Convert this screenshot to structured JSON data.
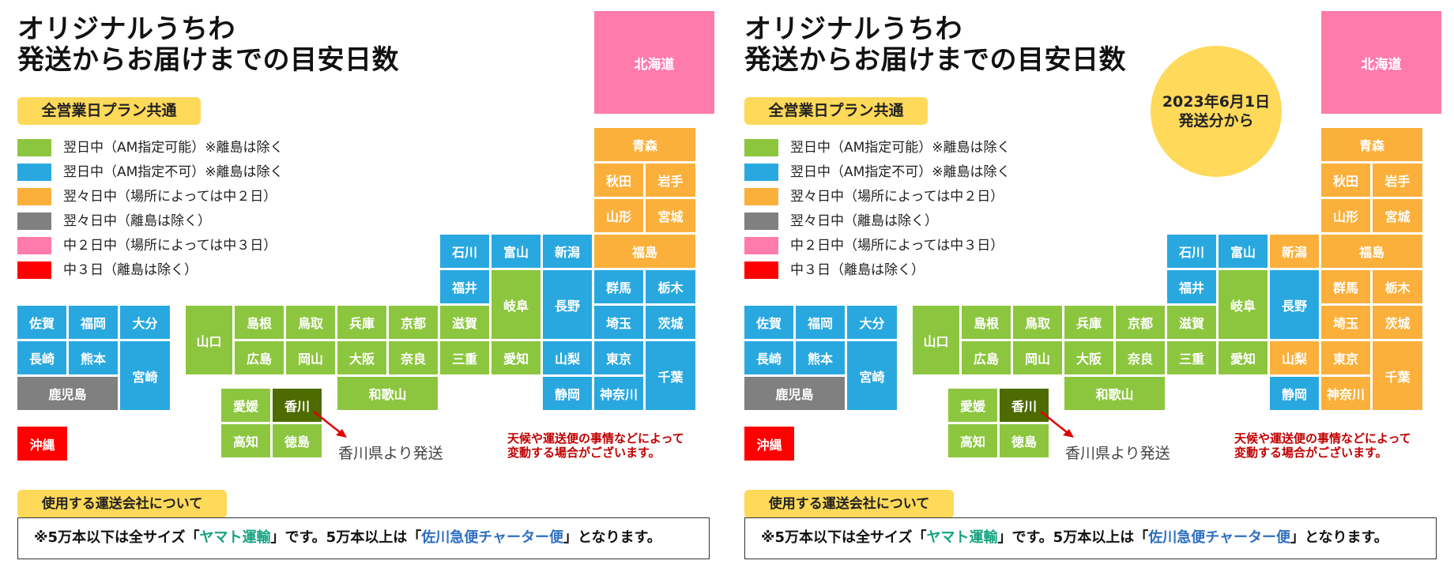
{
  "colors": {
    "green": "#8cc63f",
    "blue": "#29a8e0",
    "orange": "#fbb03b",
    "gray": "#808080",
    "pink": "#ff7bac",
    "red": "#ff0000",
    "dark_green": "#4d6b00",
    "badge_yellow": "#ffd95a"
  },
  "title": {
    "line1": "オリジナルうちわ",
    "line2": "発送からお届けまでの目安日数"
  },
  "plan_tag": "全営業日プラン共通",
  "legend": [
    {
      "color": "green",
      "label": "翌日中（AM指定可能）※離島は除く"
    },
    {
      "color": "blue",
      "label": "翌日中（AM指定不可）※離島は除く"
    },
    {
      "color": "orange",
      "label": "翌々日中（場所によっては中２日）"
    },
    {
      "color": "gray",
      "label": "翌々日中（離島は除く）"
    },
    {
      "color": "pink",
      "label": "中２日中（場所によっては中３日）"
    },
    {
      "color": "red",
      "label": "中３日（離島は除く）"
    }
  ],
  "ship_from": "香川県より発送",
  "caution": {
    "line1": "天候や運送便の事情などによって",
    "line2": "変動する場合がございます。"
  },
  "carrier_tag": "使用する運送会社について",
  "carrier": {
    "prefix": "※5万本以下は全サイズ「",
    "yamato": "ヤマト運輸",
    "middle": "」です。5万本以上は「",
    "sagawa": "佐川急便チャーター便",
    "suffix": "」となります。"
  },
  "new_badge": {
    "line1": "2023年6月1日",
    "line2": "発送分から"
  },
  "map_before": [
    {
      "name": "北海道",
      "color": "pink"
    },
    {
      "name": "青森",
      "color": "orange"
    },
    {
      "name": "秋田",
      "color": "orange"
    },
    {
      "name": "岩手",
      "color": "orange"
    },
    {
      "name": "山形",
      "color": "orange"
    },
    {
      "name": "宮城",
      "color": "orange"
    },
    {
      "name": "福島",
      "color": "orange"
    },
    {
      "name": "石川",
      "color": "blue"
    },
    {
      "name": "富山",
      "color": "blue"
    },
    {
      "name": "新潟",
      "color": "blue"
    },
    {
      "name": "福井",
      "color": "blue"
    },
    {
      "name": "岐阜",
      "color": "green"
    },
    {
      "name": "長野",
      "color": "blue"
    },
    {
      "name": "群馬",
      "color": "blue"
    },
    {
      "name": "栃木",
      "color": "blue"
    },
    {
      "name": "埼玉",
      "color": "blue"
    },
    {
      "name": "茨城",
      "color": "blue"
    },
    {
      "name": "山梨",
      "color": "blue"
    },
    {
      "name": "東京",
      "color": "blue"
    },
    {
      "name": "千葉",
      "color": "blue"
    },
    {
      "name": "静岡",
      "color": "blue"
    },
    {
      "name": "神奈川",
      "color": "blue"
    },
    {
      "name": "滋賀",
      "color": "green"
    },
    {
      "name": "三重",
      "color": "green"
    },
    {
      "name": "愛知",
      "color": "green"
    },
    {
      "name": "京都",
      "color": "green"
    },
    {
      "name": "奈良",
      "color": "green"
    },
    {
      "name": "兵庫",
      "color": "green"
    },
    {
      "name": "大阪",
      "color": "green"
    },
    {
      "name": "和歌山",
      "color": "green"
    },
    {
      "name": "鳥取",
      "color": "green"
    },
    {
      "name": "岡山",
      "color": "green"
    },
    {
      "name": "島根",
      "color": "green"
    },
    {
      "name": "広島",
      "color": "green"
    },
    {
      "name": "山口",
      "color": "green"
    },
    {
      "name": "愛媛",
      "color": "green"
    },
    {
      "name": "香川",
      "color": "dark_green"
    },
    {
      "name": "高知",
      "color": "green"
    },
    {
      "name": "徳島",
      "color": "green"
    },
    {
      "name": "佐賀",
      "color": "blue"
    },
    {
      "name": "福岡",
      "color": "blue"
    },
    {
      "name": "大分",
      "color": "blue"
    },
    {
      "name": "長崎",
      "color": "blue"
    },
    {
      "name": "熊本",
      "color": "blue"
    },
    {
      "name": "宮崎",
      "color": "blue"
    },
    {
      "name": "鹿児島",
      "color": "gray"
    },
    {
      "name": "沖縄",
      "color": "red"
    }
  ],
  "map_after": [
    {
      "name": "北海道",
      "color": "pink"
    },
    {
      "name": "青森",
      "color": "orange"
    },
    {
      "name": "秋田",
      "color": "orange"
    },
    {
      "name": "岩手",
      "color": "orange"
    },
    {
      "name": "山形",
      "color": "orange"
    },
    {
      "name": "宮城",
      "color": "orange"
    },
    {
      "name": "福島",
      "color": "orange"
    },
    {
      "name": "石川",
      "color": "blue"
    },
    {
      "name": "富山",
      "color": "blue"
    },
    {
      "name": "新潟",
      "color": "orange"
    },
    {
      "name": "福井",
      "color": "blue"
    },
    {
      "name": "岐阜",
      "color": "green"
    },
    {
      "name": "長野",
      "color": "blue"
    },
    {
      "name": "群馬",
      "color": "orange"
    },
    {
      "name": "栃木",
      "color": "orange"
    },
    {
      "name": "埼玉",
      "color": "orange"
    },
    {
      "name": "茨城",
      "color": "orange"
    },
    {
      "name": "山梨",
      "color": "orange"
    },
    {
      "name": "東京",
      "color": "orange"
    },
    {
      "name": "千葉",
      "color": "orange"
    },
    {
      "name": "静岡",
      "color": "blue"
    },
    {
      "name": "神奈川",
      "color": "orange"
    },
    {
      "name": "滋賀",
      "color": "green"
    },
    {
      "name": "三重",
      "color": "green"
    },
    {
      "name": "愛知",
      "color": "green"
    },
    {
      "name": "京都",
      "color": "green"
    },
    {
      "name": "奈良",
      "color": "green"
    },
    {
      "name": "兵庫",
      "color": "green"
    },
    {
      "name": "大阪",
      "color": "green"
    },
    {
      "name": "和歌山",
      "color": "green"
    },
    {
      "name": "鳥取",
      "color": "green"
    },
    {
      "name": "岡山",
      "color": "green"
    },
    {
      "name": "島根",
      "color": "green"
    },
    {
      "name": "広島",
      "color": "green"
    },
    {
      "name": "山口",
      "color": "green"
    },
    {
      "name": "愛媛",
      "color": "green"
    },
    {
      "name": "香川",
      "color": "dark_green"
    },
    {
      "name": "高知",
      "color": "green"
    },
    {
      "name": "徳島",
      "color": "green"
    },
    {
      "name": "佐賀",
      "color": "blue"
    },
    {
      "name": "福岡",
      "color": "blue"
    },
    {
      "name": "大分",
      "color": "blue"
    },
    {
      "name": "長崎",
      "color": "blue"
    },
    {
      "name": "熊本",
      "color": "blue"
    },
    {
      "name": "宮崎",
      "color": "blue"
    },
    {
      "name": "鹿児島",
      "color": "gray"
    },
    {
      "name": "沖縄",
      "color": "red"
    }
  ]
}
